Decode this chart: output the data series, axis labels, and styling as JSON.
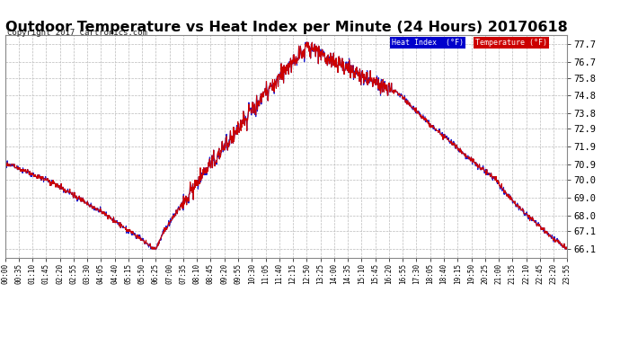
{
  "title": "Outdoor Temperature vs Heat Index per Minute (24 Hours) 20170618",
  "copyright": "Copyright 2017 Cartronics.com",
  "legend_heat": "Heat Index  (°F)",
  "legend_temp": "Temperature (°F)",
  "legend_heat_bg": "#0000cc",
  "legend_temp_bg": "#cc0000",
  "line_color": "#cc0000",
  "heat_line_color": "#0000cc",
  "background_color": "#ffffff",
  "grid_color": "#bbbbbb",
  "title_fontsize": 11.5,
  "copyright_fontsize": 6.5,
  "yticks": [
    66.1,
    67.1,
    68.0,
    69.0,
    70.0,
    70.9,
    71.9,
    72.9,
    73.8,
    74.8,
    75.8,
    76.7,
    77.7
  ],
  "ylim": [
    65.6,
    78.2
  ],
  "xtick_labels": [
    "00:00",
    "00:35",
    "01:10",
    "01:45",
    "02:20",
    "02:55",
    "03:30",
    "04:05",
    "04:40",
    "05:15",
    "05:50",
    "06:25",
    "07:00",
    "07:35",
    "08:10",
    "08:45",
    "09:20",
    "09:55",
    "10:30",
    "11:05",
    "11:40",
    "12:15",
    "12:50",
    "13:25",
    "14:00",
    "14:35",
    "15:10",
    "15:45",
    "16:20",
    "16:55",
    "17:30",
    "18:05",
    "18:40",
    "19:15",
    "19:50",
    "20:25",
    "21:00",
    "21:35",
    "22:10",
    "22:45",
    "23:20",
    "23:55"
  ],
  "num_minutes": 1440
}
